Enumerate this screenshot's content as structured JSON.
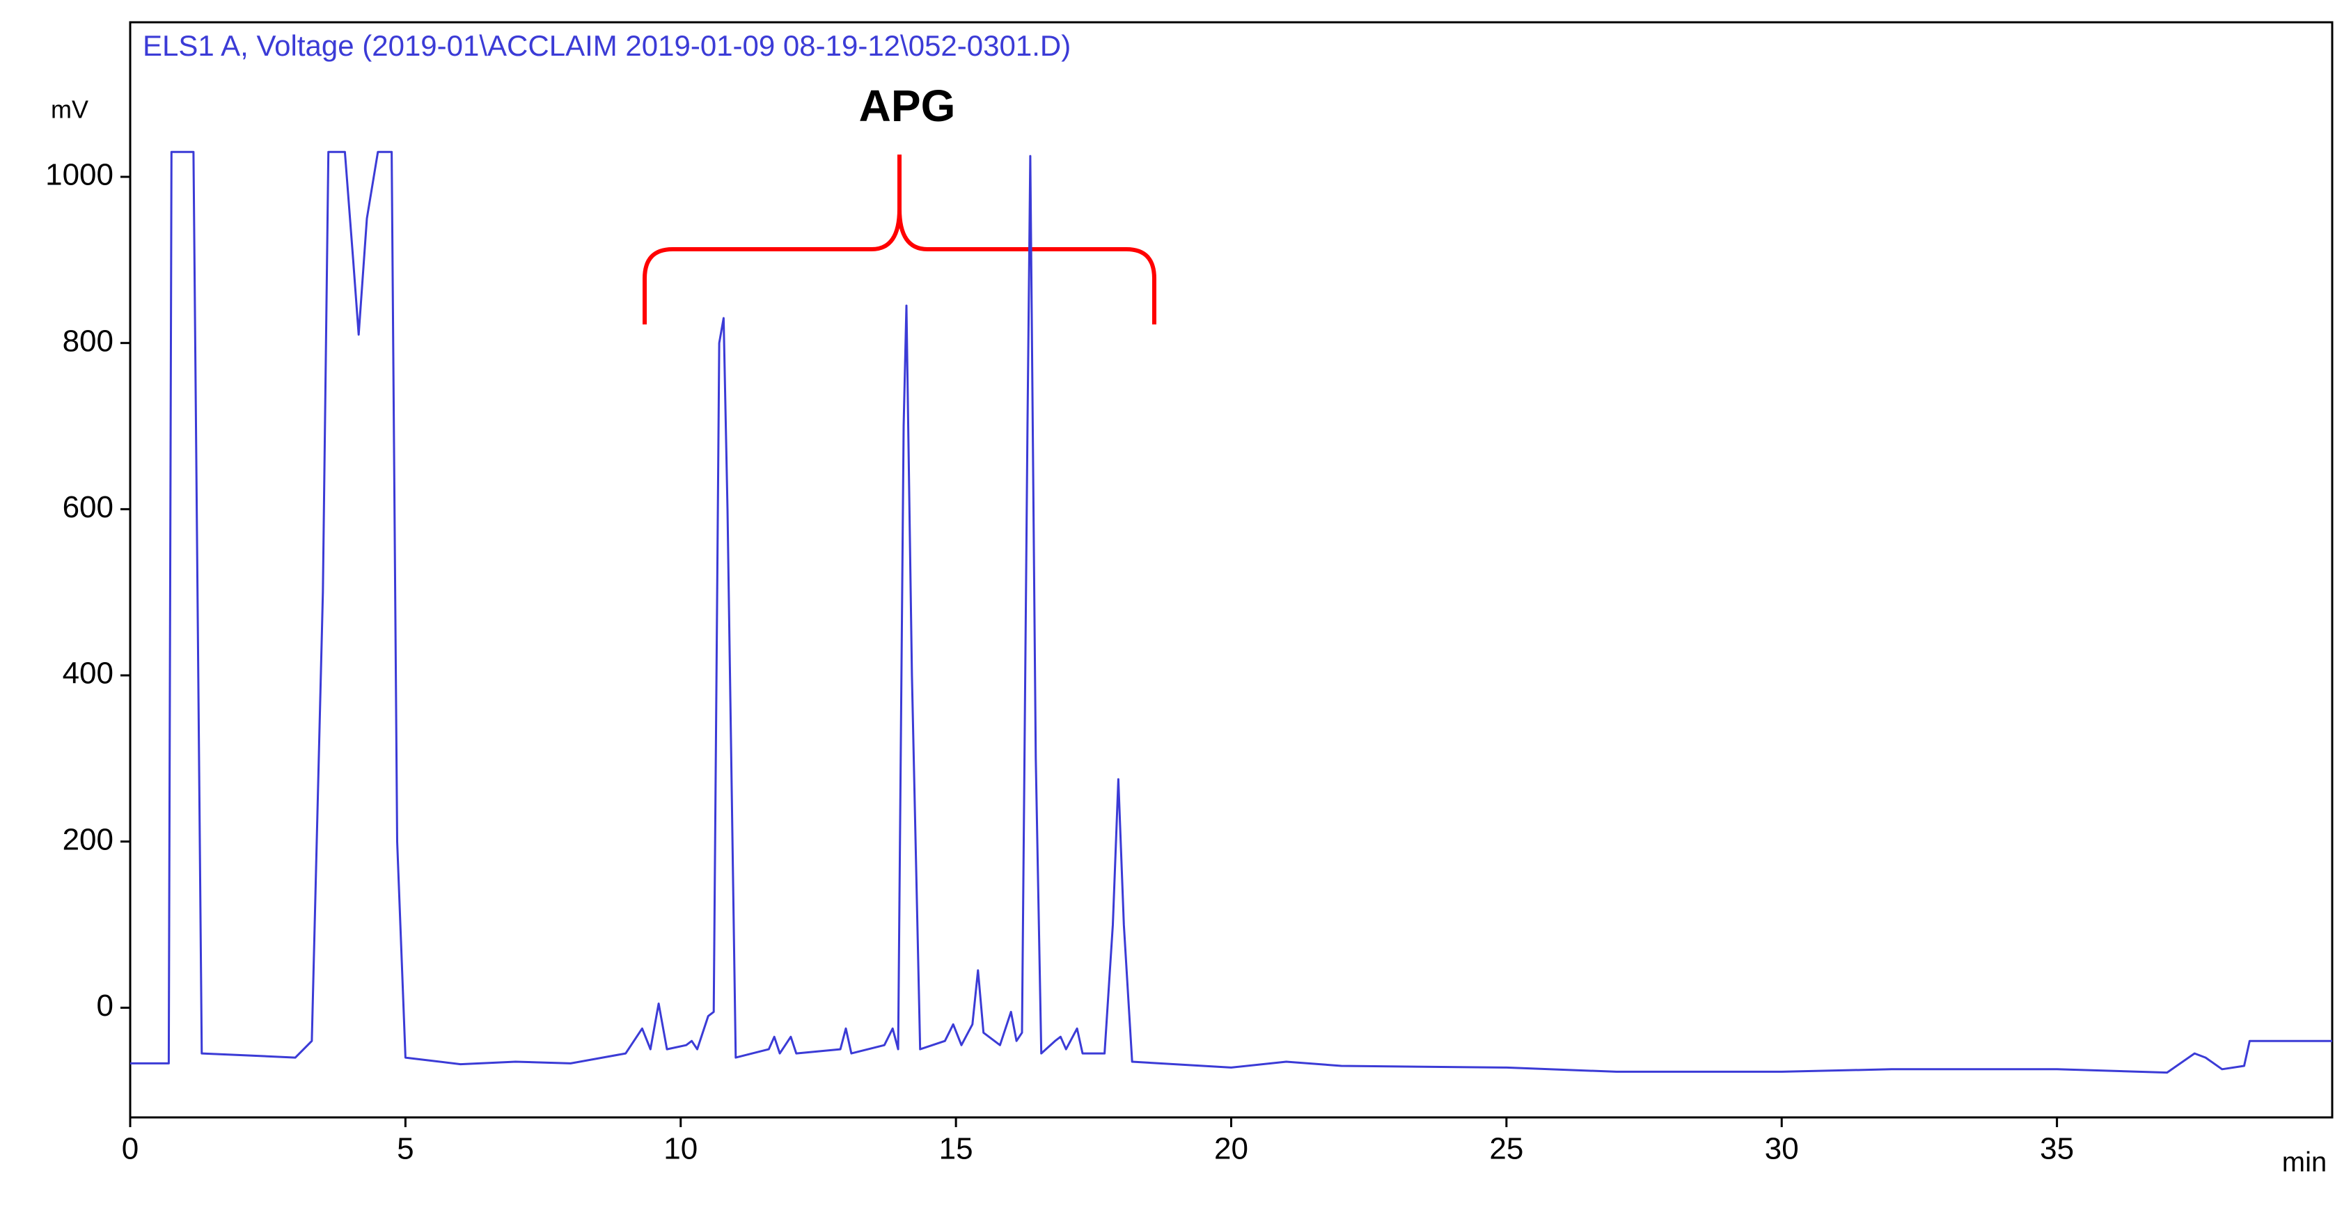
{
  "chart_data": {
    "type": "line",
    "title": "ELS1 A, Voltage (2019-01\\ACCLAIM 2019-01-09 08-19-12\\052-0301.D)",
    "y_label": "mV",
    "x_label": "min",
    "annotation": "APG",
    "color": "#3b3bd6",
    "xlim": [
      0,
      40
    ],
    "ylim": [
      -132,
      1186
    ],
    "xticks": [
      0,
      5,
      10,
      15,
      20,
      25,
      30,
      35
    ],
    "yticks": [
      0,
      200,
      400,
      600,
      800,
      1000
    ],
    "x": [
      0,
      0.7,
      0.75,
      1.15,
      1.3,
      2.0,
      3.0,
      3.3,
      3.5,
      3.6,
      3.9,
      4.05,
      4.15,
      4.3,
      4.5,
      4.75,
      4.85,
      5.0,
      6.0,
      7.0,
      8.0,
      9.0,
      9.3,
      9.45,
      9.6,
      9.75,
      10.1,
      10.2,
      10.3,
      10.5,
      10.6,
      10.7,
      10.78,
      10.85,
      11.0,
      11.6,
      11.7,
      11.8,
      12.0,
      12.1,
      12.9,
      13.0,
      13.1,
      13.7,
      13.85,
      13.95,
      14.05,
      14.1,
      14.2,
      14.35,
      14.8,
      14.95,
      15.1,
      15.3,
      15.4,
      15.5,
      15.8,
      16.0,
      16.1,
      16.2,
      16.3,
      16.35,
      16.45,
      16.55,
      16.8,
      16.9,
      17.0,
      17.2,
      17.3,
      17.7,
      17.85,
      17.95,
      18.05,
      18.2,
      20.0,
      21.0,
      22.0,
      25.0,
      27.0,
      30.0,
      32.0,
      35.0,
      37.0,
      37.5,
      37.7,
      38.0,
      38.4,
      38.5,
      40.0
    ],
    "values": [
      -67,
      -67,
      1030,
      1030,
      -55,
      -57,
      -60,
      -40,
      500,
      1030,
      1030,
      900,
      810,
      950,
      1030,
      1030,
      200,
      -60,
      -68,
      -65,
      -67,
      -55,
      -25,
      -50,
      5,
      -50,
      -45,
      -40,
      -50,
      -10,
      -5,
      800,
      830,
      600,
      -60,
      -50,
      -35,
      -55,
      -35,
      -55,
      -50,
      -25,
      -55,
      -45,
      -25,
      -50,
      700,
      845,
      400,
      -50,
      -40,
      -20,
      -45,
      -20,
      45,
      -30,
      -45,
      -5,
      -40,
      -30,
      700,
      1025,
      300,
      -55,
      -40,
      -35,
      -50,
      -25,
      -55,
      -55,
      100,
      275,
      100,
      -65,
      -72,
      -65,
      -70,
      -72,
      -77,
      -77,
      -74,
      -74,
      -78,
      -55,
      -60,
      -74,
      -70,
      -40,
      -40
    ]
  }
}
